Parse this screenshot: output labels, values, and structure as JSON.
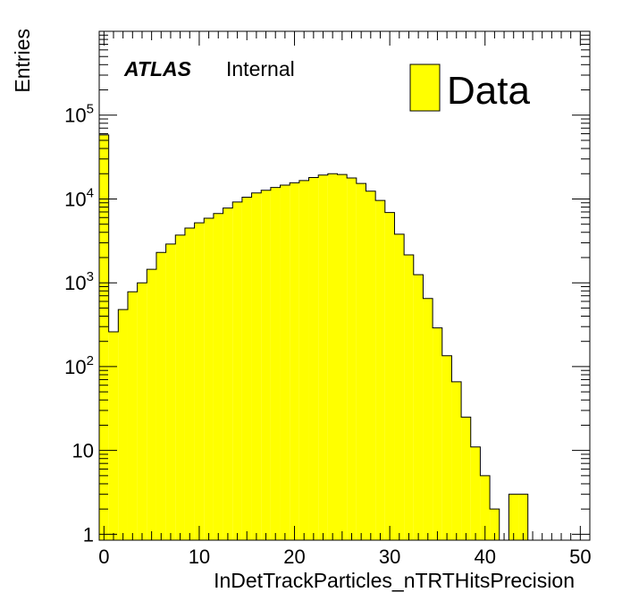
{
  "chart_data": {
    "type": "bar",
    "title": "",
    "xlabel": "InDetTrackParticles_nTRTHitsPrecision",
    "ylabel": "Entries",
    "xlim": [
      -0.5,
      51
    ],
    "ylim": [
      0.85,
      1000000
    ],
    "yscale": "log",
    "bin_width": 1,
    "bin_starts": [
      -0.5,
      0.5,
      1.5,
      2.5,
      3.5,
      4.5,
      5.5,
      6.5,
      7.5,
      8.5,
      9.5,
      10.5,
      11.5,
      12.5,
      13.5,
      14.5,
      15.5,
      16.5,
      17.5,
      18.5,
      19.5,
      20.5,
      21.5,
      22.5,
      23.5,
      24.5,
      25.5,
      26.5,
      27.5,
      28.5,
      29.5,
      30.5,
      31.5,
      32.5,
      33.5,
      34.5,
      35.5,
      36.5,
      37.5,
      38.5,
      39.5,
      40.5,
      41.5,
      42.5,
      43.5
    ],
    "series": [
      {
        "name": "Data",
        "color": "#ffff00",
        "values": [
          58000,
          260,
          480,
          780,
          1000,
          1450,
          2300,
          2900,
          3700,
          4500,
          5200,
          5900,
          6700,
          7800,
          9200,
          10500,
          11800,
          12700,
          13700,
          14600,
          15600,
          16600,
          18000,
          19300,
          20000,
          19600,
          17800,
          15300,
          12400,
          9600,
          6900,
          3800,
          2150,
          1250,
          650,
          290,
          135,
          66,
          25,
          11,
          5,
          2,
          0,
          3,
          3
        ]
      }
    ],
    "xticks": [
      {
        "value": 0,
        "label": "0"
      },
      {
        "value": 10,
        "label": "10"
      },
      {
        "value": 20,
        "label": "20"
      },
      {
        "value": 30,
        "label": "30"
      },
      {
        "value": 40,
        "label": "40"
      },
      {
        "value": 50,
        "label": "50"
      }
    ],
    "yticks": [
      {
        "value": 1,
        "base": "1",
        "exp": ""
      },
      {
        "value": 10,
        "base": "10",
        "exp": ""
      },
      {
        "value": 100,
        "base": "10",
        "exp": "2"
      },
      {
        "value": 1000,
        "base": "10",
        "exp": "3"
      },
      {
        "value": 10000,
        "base": "10",
        "exp": "4"
      },
      {
        "value": 100000,
        "base": "10",
        "exp": "5"
      }
    ],
    "annotations": {
      "experiment": "ATLAS",
      "status": "Internal"
    },
    "legend": {
      "placement": "top-right",
      "entries": [
        {
          "label": "Data",
          "color": "#ffff00"
        }
      ]
    },
    "grid": false
  }
}
